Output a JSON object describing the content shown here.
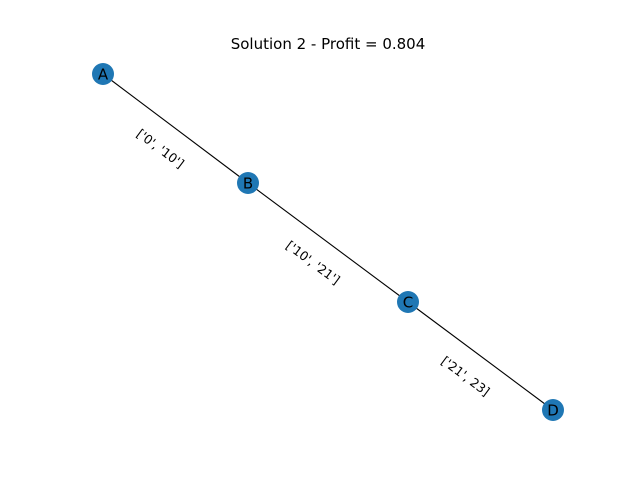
{
  "title": "Solution 2 - Profit = 0.804",
  "colors": {
    "node": "#1f77b4",
    "edge": "#000000",
    "text": "#000000",
    "background": "#ffffff"
  },
  "nodes": [
    {
      "id": "A",
      "label": "A"
    },
    {
      "id": "B",
      "label": "B"
    },
    {
      "id": "C",
      "label": "C"
    },
    {
      "id": "D",
      "label": "D"
    }
  ],
  "edges": [
    {
      "from": "A",
      "to": "B",
      "label": "['0', '10']"
    },
    {
      "from": "B",
      "to": "C",
      "label": "['10', '21']"
    },
    {
      "from": "C",
      "to": "D",
      "label": "['21', 23]"
    }
  ]
}
